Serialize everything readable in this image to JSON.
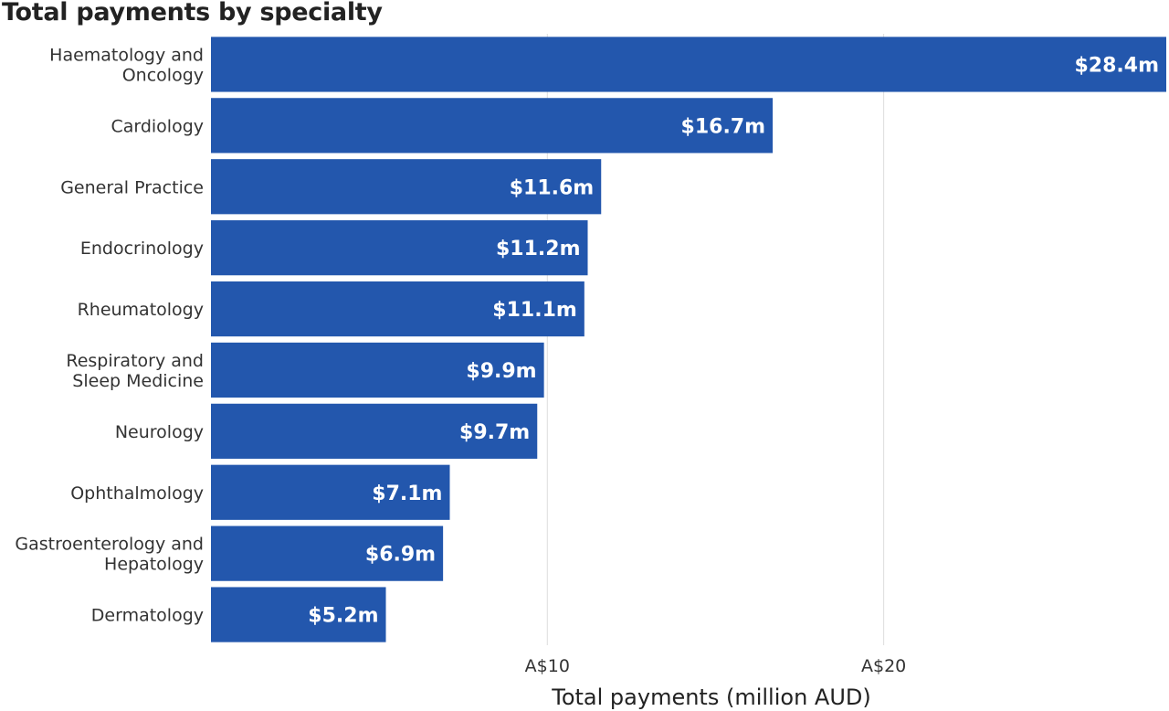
{
  "chart_data": {
    "type": "bar",
    "orientation": "horizontal",
    "title": "Total payments by specialty",
    "xlabel": "Total payments (million AUD)",
    "ylabel": "",
    "categories": [
      "Haematology and Oncology",
      "Cardiology",
      "General Practice",
      "Endocrinology",
      "Rheumatology",
      "Respiratory and Sleep Medicine",
      "Neurology",
      "Ophthalmology",
      "Gastroenterology and Hepatology",
      "Dermatology"
    ],
    "category_lines": [
      [
        "Haematology and",
        "Oncology"
      ],
      [
        "Cardiology"
      ],
      [
        "General Practice"
      ],
      [
        "Endocrinology"
      ],
      [
        "Rheumatology"
      ],
      [
        "Respiratory and",
        "Sleep Medicine"
      ],
      [
        "Neurology"
      ],
      [
        "Ophthalmology"
      ],
      [
        "Gastroenterology and",
        "Hepatology"
      ],
      [
        "Dermatology"
      ]
    ],
    "values": [
      28.4,
      16.7,
      11.6,
      11.2,
      11.1,
      9.9,
      9.7,
      7.1,
      6.9,
      5.2
    ],
    "value_labels": [
      "$28.4m",
      "$16.7m",
      "$11.6m",
      "$11.2m",
      "$11.1m",
      "$9.9m",
      "$9.7m",
      "$7.1m",
      "$6.9m",
      "$5.2m"
    ],
    "xlim": [
      0,
      28.4
    ],
    "xticks": [
      10,
      20
    ],
    "xtick_labels": [
      "A$10",
      "A$20"
    ],
    "grid": "vertical",
    "colors": {
      "bar": "#2357ad",
      "grid": "#dddddd",
      "value_text": "#ffffff"
    }
  }
}
